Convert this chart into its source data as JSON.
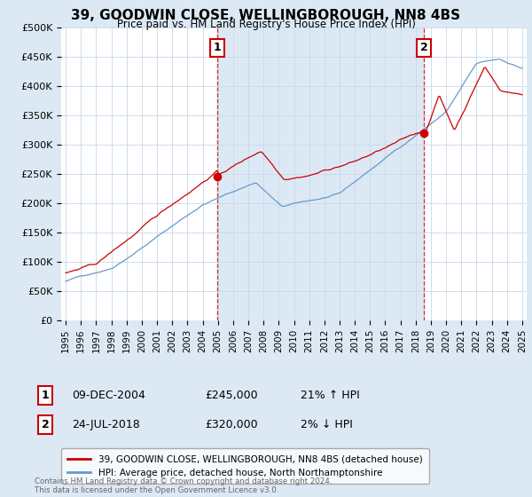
{
  "title": "39, GOODWIN CLOSE, WELLINGBOROUGH, NN8 4BS",
  "subtitle": "Price paid vs. HM Land Registry's House Price Index (HPI)",
  "background_color": "#dce9f5",
  "plot_bg_color": "#ffffff",
  "fill_color": "#dce9f5",
  "ylim": [
    0,
    500000
  ],
  "yticks": [
    0,
    50000,
    100000,
    150000,
    200000,
    250000,
    300000,
    350000,
    400000,
    450000,
    500000
  ],
  "ytick_labels": [
    "£0",
    "£50K",
    "£100K",
    "£150K",
    "£200K",
    "£250K",
    "£300K",
    "£350K",
    "£400K",
    "£450K",
    "£500K"
  ],
  "xlim_start": 1994.7,
  "xlim_end": 2025.3,
  "red_line_color": "#cc0000",
  "blue_line_color": "#6699cc",
  "point1_x": 2004.94,
  "point1_y": 245000,
  "point1_label": "1",
  "point1_date": "09-DEC-2004",
  "point1_price": "£245,000",
  "point1_hpi": "21% ↑ HPI",
  "point2_x": 2018.56,
  "point2_y": 320000,
  "point2_label": "2",
  "point2_date": "24-JUL-2018",
  "point2_price": "£320,000",
  "point2_hpi": "2% ↓ HPI",
  "legend_line1": "39, GOODWIN CLOSE, WELLINGBOROUGH, NN8 4BS (detached house)",
  "legend_line2": "HPI: Average price, detached house, North Northamptonshire",
  "footnote": "Contains HM Land Registry data © Crown copyright and database right 2024.\nThis data is licensed under the Open Government Licence v3.0."
}
